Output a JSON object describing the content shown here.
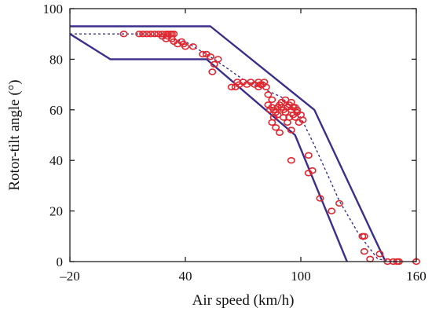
{
  "chart_data": {
    "type": "scatter",
    "xlabel": "Air speed (km/h)",
    "ylabel": "Rotor-tilt angle (°)",
    "xlim": [
      -20,
      160
    ],
    "ylim": [
      0,
      100
    ],
    "x_ticks": [
      -20,
      40,
      100,
      160
    ],
    "y_ticks": [
      0,
      20,
      40,
      60,
      80,
      100
    ],
    "x_tick_labels": [
      "–20",
      "40",
      "100",
      "160"
    ],
    "y_tick_labels": [
      "0",
      "20",
      "40",
      "60",
      "80",
      "100"
    ],
    "grid": false,
    "colors": {
      "boundary": "#3b2e8c",
      "center": "#3b2e8c",
      "points": "#e0262e"
    },
    "lines": [
      {
        "role": "upper-boundary",
        "style": "solid",
        "x": [
          -20,
          53,
          107,
          144
        ],
        "y": [
          93,
          93,
          60,
          0
        ]
      },
      {
        "role": "lower-boundary",
        "style": "solid",
        "x": [
          -20,
          1,
          51,
          97,
          124
        ],
        "y": [
          90,
          80,
          80,
          50,
          0
        ]
      },
      {
        "role": "center-line",
        "style": "dashed",
        "x": [
          -20,
          20,
          40,
          55,
          70,
          90,
          100,
          107,
          120,
          130,
          140,
          150
        ],
        "y": [
          90,
          90,
          87,
          80,
          72,
          65,
          57,
          46,
          24,
          11,
          1,
          0
        ]
      }
    ],
    "points": [
      {
        "x": 8,
        "y": 90
      },
      {
        "x": 16,
        "y": 90
      },
      {
        "x": 18,
        "y": 90
      },
      {
        "x": 20,
        "y": 90
      },
      {
        "x": 22,
        "y": 90
      },
      {
        "x": 24,
        "y": 90
      },
      {
        "x": 26,
        "y": 90
      },
      {
        "x": 28,
        "y": 90
      },
      {
        "x": 30,
        "y": 90
      },
      {
        "x": 31,
        "y": 90
      },
      {
        "x": 32,
        "y": 90
      },
      {
        "x": 33,
        "y": 90
      },
      {
        "x": 34,
        "y": 90
      },
      {
        "x": 28,
        "y": 89
      },
      {
        "x": 30,
        "y": 88
      },
      {
        "x": 31,
        "y": 89
      },
      {
        "x": 33,
        "y": 88
      },
      {
        "x": 34,
        "y": 87
      },
      {
        "x": 36,
        "y": 86
      },
      {
        "x": 38,
        "y": 87
      },
      {
        "x": 39,
        "y": 86
      },
      {
        "x": 40,
        "y": 85
      },
      {
        "x": 44,
        "y": 85
      },
      {
        "x": 49,
        "y": 82
      },
      {
        "x": 51,
        "y": 82
      },
      {
        "x": 53,
        "y": 81
      },
      {
        "x": 57,
        "y": 80
      },
      {
        "x": 55,
        "y": 78
      },
      {
        "x": 54,
        "y": 75
      },
      {
        "x": 64,
        "y": 69
      },
      {
        "x": 66,
        "y": 69
      },
      {
        "x": 67,
        "y": 71
      },
      {
        "x": 68,
        "y": 70
      },
      {
        "x": 70,
        "y": 71
      },
      {
        "x": 72,
        "y": 70
      },
      {
        "x": 74,
        "y": 71
      },
      {
        "x": 76,
        "y": 70
      },
      {
        "x": 78,
        "y": 71
      },
      {
        "x": 79,
        "y": 70
      },
      {
        "x": 80,
        "y": 70
      },
      {
        "x": 81,
        "y": 71
      },
      {
        "x": 78,
        "y": 69
      },
      {
        "x": 82,
        "y": 69
      },
      {
        "x": 83,
        "y": 66
      },
      {
        "x": 85,
        "y": 64
      },
      {
        "x": 83,
        "y": 62
      },
      {
        "x": 84,
        "y": 60
      },
      {
        "x": 85,
        "y": 61
      },
      {
        "x": 86,
        "y": 60
      },
      {
        "x": 87,
        "y": 59
      },
      {
        "x": 88,
        "y": 61
      },
      {
        "x": 89,
        "y": 62
      },
      {
        "x": 90,
        "y": 61
      },
      {
        "x": 91,
        "y": 60
      },
      {
        "x": 92,
        "y": 59
      },
      {
        "x": 93,
        "y": 61
      },
      {
        "x": 94,
        "y": 62
      },
      {
        "x": 95,
        "y": 60
      },
      {
        "x": 96,
        "y": 58
      },
      {
        "x": 97,
        "y": 57
      },
      {
        "x": 98,
        "y": 59
      },
      {
        "x": 100,
        "y": 58
      },
      {
        "x": 101,
        "y": 56
      },
      {
        "x": 99,
        "y": 55
      },
      {
        "x": 97,
        "y": 61
      },
      {
        "x": 95,
        "y": 63
      },
      {
        "x": 92,
        "y": 64
      },
      {
        "x": 90,
        "y": 63
      },
      {
        "x": 88,
        "y": 58
      },
      {
        "x": 86,
        "y": 57
      },
      {
        "x": 85,
        "y": 55
      },
      {
        "x": 87,
        "y": 53
      },
      {
        "x": 89,
        "y": 51
      },
      {
        "x": 93,
        "y": 55
      },
      {
        "x": 95,
        "y": 52
      },
      {
        "x": 91,
        "y": 57
      },
      {
        "x": 94,
        "y": 57
      },
      {
        "x": 96,
        "y": 61
      },
      {
        "x": 98,
        "y": 60
      },
      {
        "x": 95,
        "y": 40
      },
      {
        "x": 104,
        "y": 42
      },
      {
        "x": 104,
        "y": 35
      },
      {
        "x": 106,
        "y": 36
      },
      {
        "x": 110,
        "y": 25
      },
      {
        "x": 116,
        "y": 20
      },
      {
        "x": 120,
        "y": 23
      },
      {
        "x": 132,
        "y": 10
      },
      {
        "x": 133,
        "y": 10
      },
      {
        "x": 133,
        "y": 4
      },
      {
        "x": 136,
        "y": 1
      },
      {
        "x": 141,
        "y": 3
      },
      {
        "x": 145,
        "y": 0
      },
      {
        "x": 148,
        "y": 0
      },
      {
        "x": 150,
        "y": 0
      },
      {
        "x": 151,
        "y": 0
      },
      {
        "x": 160,
        "y": 0
      }
    ]
  }
}
